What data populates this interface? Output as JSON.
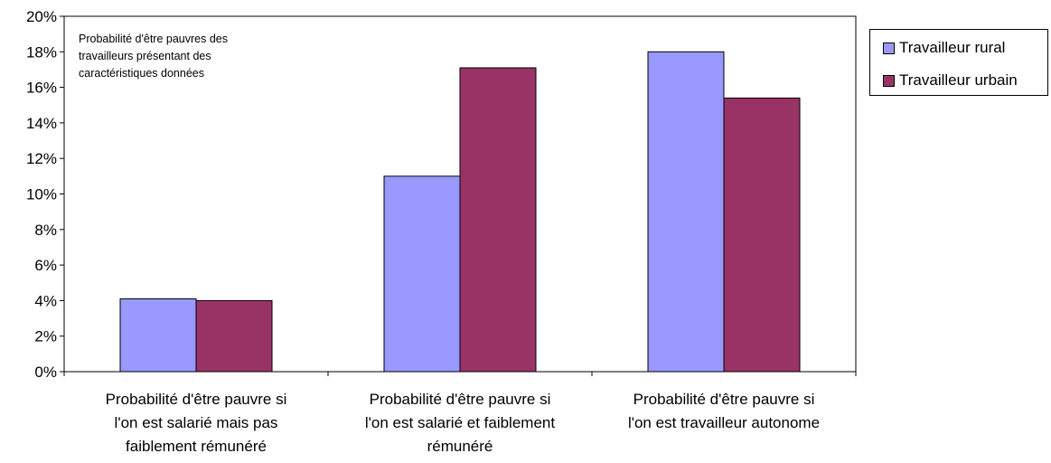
{
  "chart_data": {
    "type": "bar",
    "title": "",
    "annotation": [
      "Probabilité d'être pauvres des",
      "travailleurs présentant des",
      "caractéristiques données"
    ],
    "categories": [
      [
        "Probabilité d'être pauvre si",
        "l'on est salarié mais pas",
        "faiblement rémunéré"
      ],
      [
        "Probabilité d'être pauvre si",
        "l'on est salarié et faiblement",
        "rémunéré"
      ],
      [
        "Probabilité d'être pauvre si",
        "l'on est travailleur autonome"
      ]
    ],
    "series": [
      {
        "name": "Travailleur rural",
        "color": "#9999FF",
        "values": [
          4.1,
          11.0,
          18.0
        ]
      },
      {
        "name": "Travailleur urbain",
        "color": "#993366",
        "values": [
          4.0,
          17.1,
          15.4
        ]
      }
    ],
    "y_ticks": [
      "0%",
      "2%",
      "4%",
      "6%",
      "8%",
      "10%",
      "12%",
      "14%",
      "16%",
      "18%",
      "20%"
    ],
    "ylim": [
      0,
      20
    ],
    "y_unit": "%",
    "grid": false,
    "legend_position": "right"
  }
}
